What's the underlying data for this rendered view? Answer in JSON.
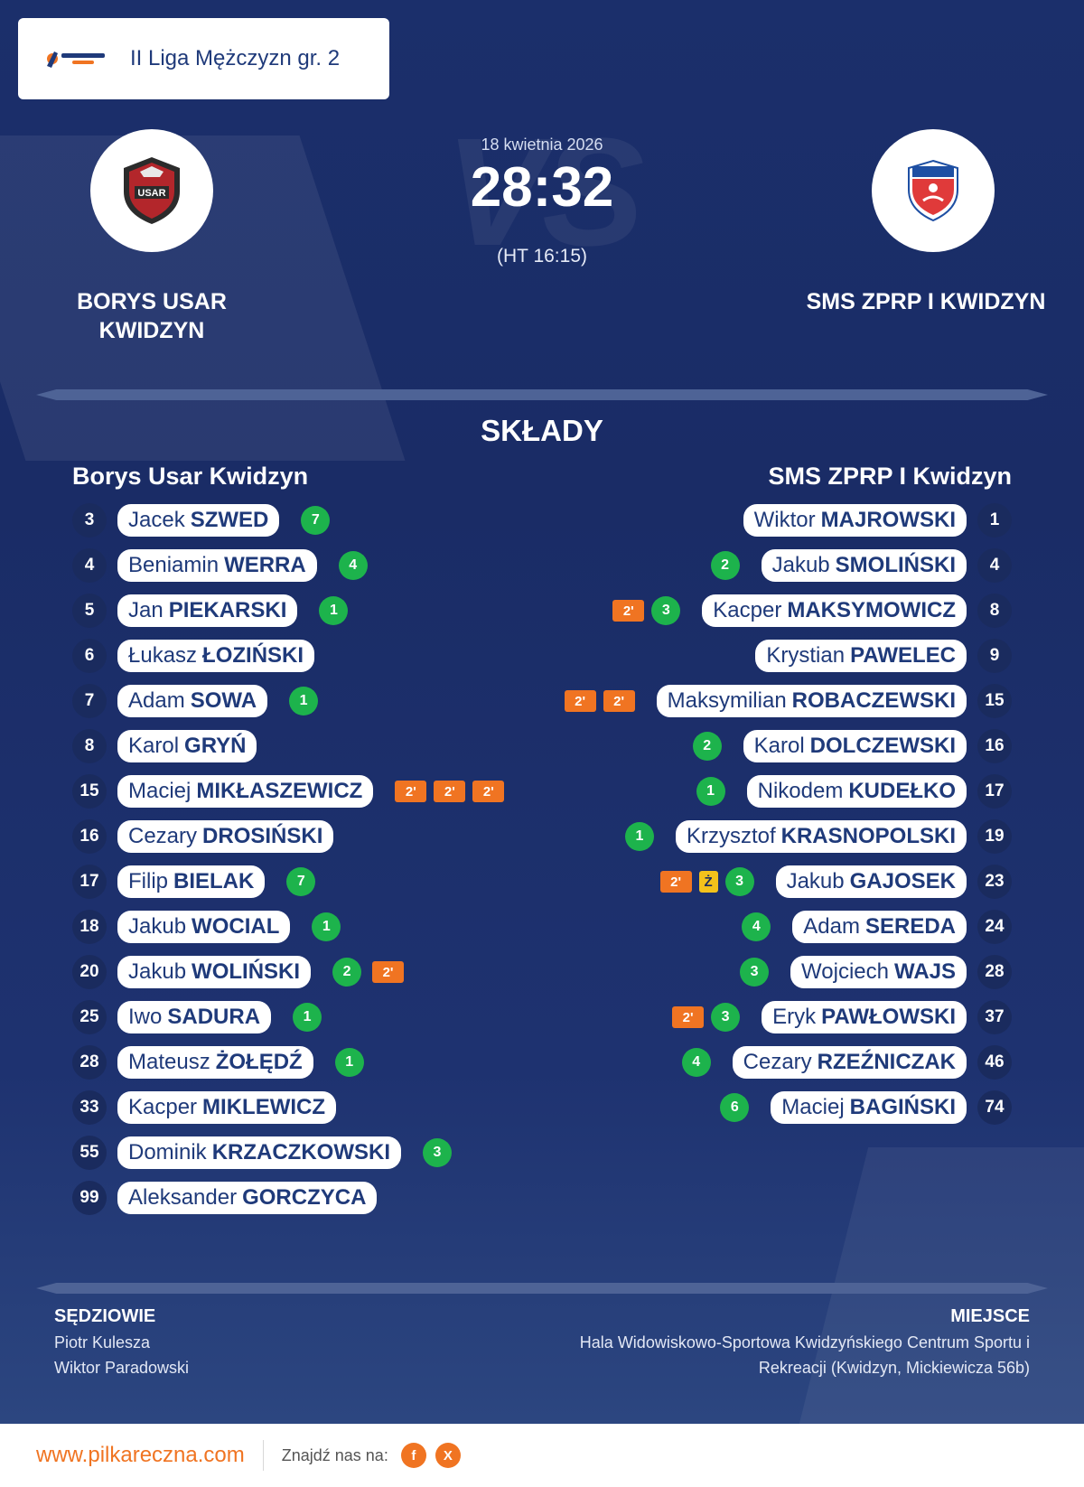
{
  "header": {
    "brand_logo": "pilkareczna.com",
    "league": "II Liga Mężczyzn gr. 2"
  },
  "match": {
    "date": "18 kwietnia 2026",
    "score": "28:32",
    "halftime": "(HT 16:15)",
    "vs_text": "VS"
  },
  "home": {
    "name_line1": "BORYS USAR",
    "name_line2": "KWIDZYN",
    "squad_title": "Borys Usar Kwidzyn",
    "logo": "USAR crest"
  },
  "away": {
    "name": "SMS ZPRP I KWIDZYN",
    "squad_title": "SMS ZPRP I Kwidzyn",
    "logo": "SMS ZPRP crest"
  },
  "section_title": "SKŁADY",
  "home_players": [
    {
      "num": "3",
      "first": "Jacek",
      "last": "SZWED",
      "goals": "7",
      "events": []
    },
    {
      "num": "4",
      "first": "Beniamin",
      "last": "WERRA",
      "goals": "4",
      "events": []
    },
    {
      "num": "5",
      "first": "Jan",
      "last": "PIEKARSKI",
      "goals": "1",
      "events": []
    },
    {
      "num": "6",
      "first": "Łukasz",
      "last": "ŁOZIŃSKI",
      "goals": "",
      "events": []
    },
    {
      "num": "7",
      "first": "Adam",
      "last": "SOWA",
      "goals": "1",
      "events": []
    },
    {
      "num": "8",
      "first": "Karol",
      "last": "GRYŃ",
      "goals": "",
      "events": []
    },
    {
      "num": "15",
      "first": "Maciej",
      "last": "MIKŁASZEWICZ",
      "goals": "",
      "events": [
        "2'",
        "2'",
        "2'"
      ]
    },
    {
      "num": "16",
      "first": "Cezary",
      "last": "DROSIŃSKI",
      "goals": "",
      "events": []
    },
    {
      "num": "17",
      "first": "Filip",
      "last": "BIELAK",
      "goals": "7",
      "events": []
    },
    {
      "num": "18",
      "first": "Jakub",
      "last": "WOCIAL",
      "goals": "1",
      "events": []
    },
    {
      "num": "20",
      "first": "Jakub",
      "last": "WOLIŃSKI",
      "goals": "2",
      "events": [
        "2'"
      ]
    },
    {
      "num": "25",
      "first": "Iwo",
      "last": "SADURA",
      "goals": "1",
      "events": []
    },
    {
      "num": "28",
      "first": "Mateusz",
      "last": "ŻOŁĘDŹ",
      "goals": "1",
      "events": []
    },
    {
      "num": "33",
      "first": "Kacper",
      "last": "MIKLEWICZ",
      "goals": "",
      "events": []
    },
    {
      "num": "55",
      "first": "Dominik",
      "last": "KRZACZKOWSKI",
      "goals": "3",
      "events": []
    },
    {
      "num": "99",
      "first": "Aleksander",
      "last": "GORCZYCA",
      "goals": "",
      "events": []
    }
  ],
  "away_players": [
    {
      "num": "1",
      "first": "Wiktor",
      "last": "MAJROWSKI",
      "goals": "",
      "events": []
    },
    {
      "num": "4",
      "first": "Jakub",
      "last": "SMOLIŃSKI",
      "goals": "2",
      "events": []
    },
    {
      "num": "8",
      "first": "Kacper",
      "last": "MAKSYMOWICZ",
      "goals": "3",
      "events": [
        "2'"
      ]
    },
    {
      "num": "9",
      "first": "Krystian",
      "last": "PAWELEC",
      "goals": "",
      "events": []
    },
    {
      "num": "15",
      "first": "Maksymilian",
      "last": "ROBACZEWSKI",
      "goals": "",
      "events": [
        "2'",
        "2'"
      ]
    },
    {
      "num": "16",
      "first": "Karol",
      "last": "DOLCZEWSKI",
      "goals": "2",
      "events": []
    },
    {
      "num": "17",
      "first": "Nikodem",
      "last": "KUDEŁKO",
      "goals": "1",
      "events": []
    },
    {
      "num": "19",
      "first": "Krzysztof",
      "last": "KRASNOPOLSKI",
      "goals": "1",
      "events": []
    },
    {
      "num": "23",
      "first": "Jakub",
      "last": "GAJOSEK",
      "goals": "3",
      "events": [
        "Ż",
        "2'"
      ]
    },
    {
      "num": "24",
      "first": "Adam",
      "last": "SEREDA",
      "goals": "4",
      "events": []
    },
    {
      "num": "28",
      "first": "Wojciech",
      "last": "WAJS",
      "goals": "3",
      "events": []
    },
    {
      "num": "37",
      "first": "Eryk",
      "last": "PAWŁOWSKI",
      "goals": "3",
      "events": [
        "2'"
      ]
    },
    {
      "num": "46",
      "first": "Cezary",
      "last": "RZEŹNICZAK",
      "goals": "4",
      "events": []
    },
    {
      "num": "74",
      "first": "Maciej",
      "last": "BAGIŃSKI",
      "goals": "6",
      "events": []
    }
  ],
  "referees": {
    "label": "SĘDZIOWIE",
    "names": [
      "Piotr Kulesza",
      "Wiktor Paradowski"
    ]
  },
  "venue": {
    "label": "MIEJSCE",
    "line1": "Hala Widowiskowo-Sportowa Kwidzyńskiego Centrum Sportu i",
    "line2": "Rekreacji (Kwidzyn, Mickiewicza 56b)"
  },
  "footer": {
    "url": "www.pilkareczna.com",
    "find_us": "Znajdź nas na:",
    "social": [
      {
        "icon": "facebook-icon",
        "glyph": "f"
      },
      {
        "icon": "x-icon",
        "glyph": "X"
      }
    ]
  },
  "colors": {
    "background": "#1b2f6b",
    "goal": "#1db34c",
    "suspension": "#f07422",
    "yellow_card": "#f4c21b",
    "number_badge": "#1a2b5e"
  }
}
